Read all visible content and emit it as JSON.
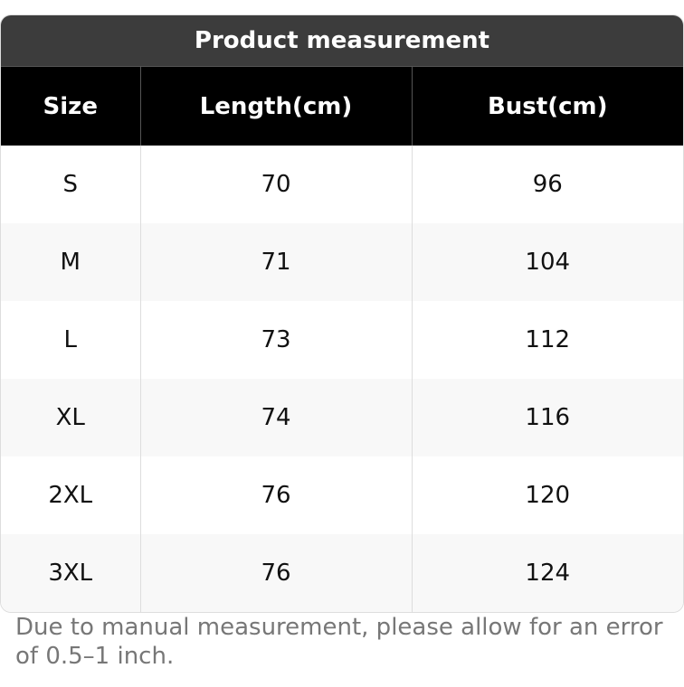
{
  "title": "Product measurement",
  "headers": [
    "Size",
    "Length(cm)",
    "Bust(cm)"
  ],
  "rows": [
    [
      "S",
      "70",
      "96"
    ],
    [
      "M",
      "71",
      "104"
    ],
    [
      "L",
      "73",
      "112"
    ],
    [
      "XL",
      "74",
      "116"
    ],
    [
      "2XL",
      "76",
      "120"
    ],
    [
      "3XL",
      "76",
      "124"
    ]
  ],
  "note": "Due to manual measurement, please allow for an error of 0.5–1 inch."
}
